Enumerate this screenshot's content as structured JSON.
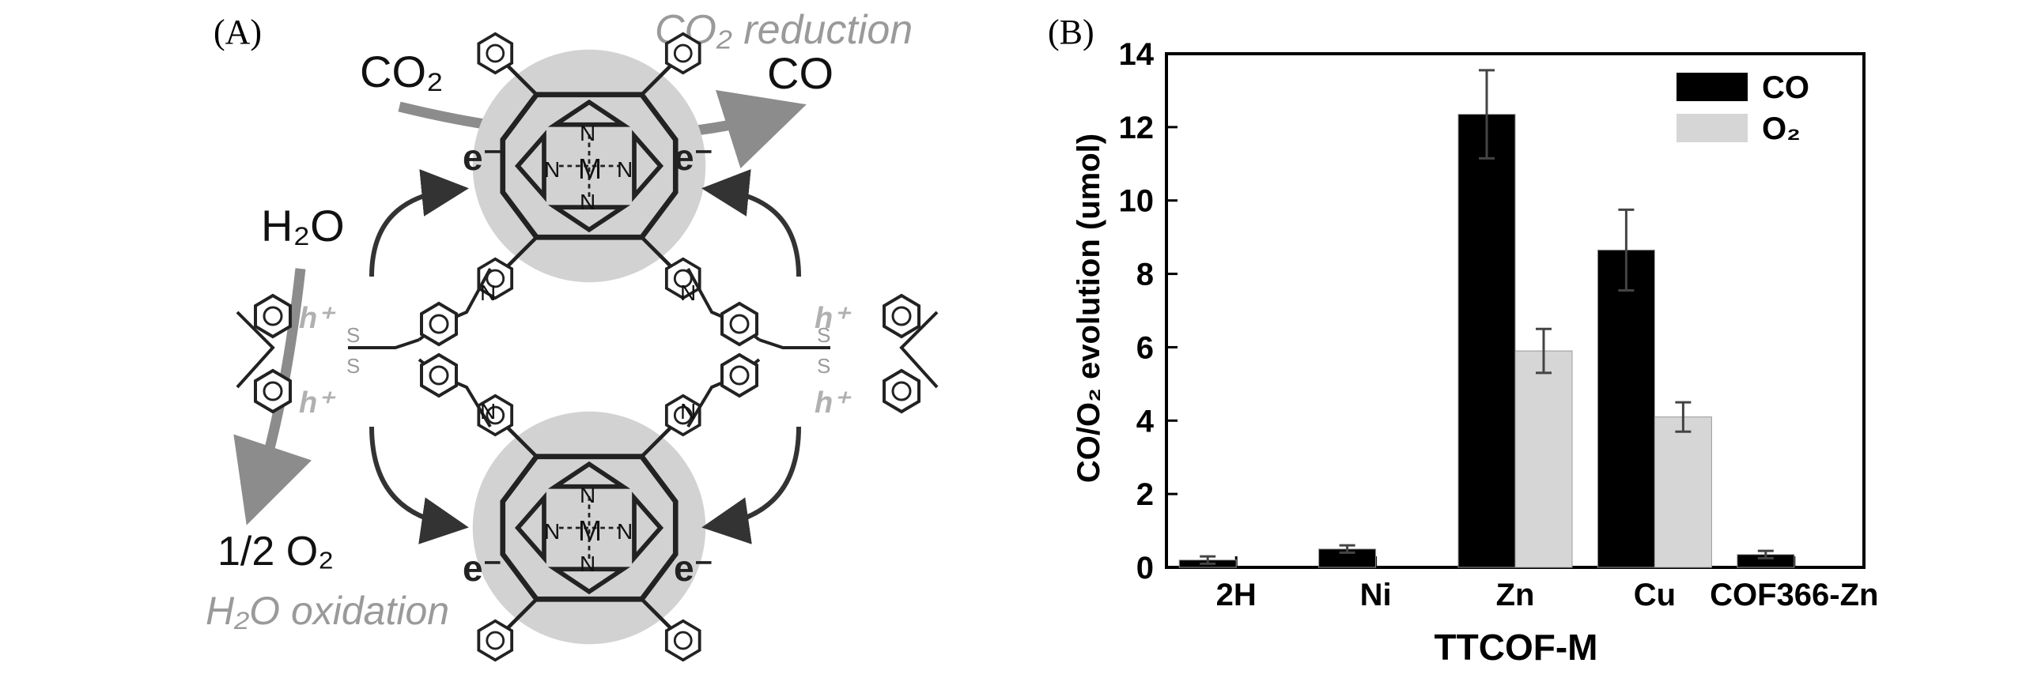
{
  "panel_a": {
    "label": "(A)",
    "reduction_label": "CO₂ reduction",
    "oxidation_label": "H₂O oxidation",
    "reactant_co2": "CO₂",
    "product_co": "CO",
    "reactant_h2o": "H₂O",
    "product_o2": "1/2 O₂",
    "electron": "e⁻",
    "hole": "h⁺",
    "metal": "M",
    "nitrogen": "N",
    "sulfur": "S"
  },
  "panel_b": {
    "label": "(B)"
  },
  "chart_data": {
    "type": "bar",
    "categories": [
      "2H",
      "Ni",
      "Zn",
      "Cu",
      "COF366-Zn"
    ],
    "series": [
      {
        "name": "CO",
        "color": "#000000",
        "values": [
          0.2,
          0.5,
          12.35,
          8.65,
          0.35
        ],
        "errors": [
          0.1,
          0.1,
          1.2,
          1.1,
          0.1
        ]
      },
      {
        "name": "O₂",
        "color": "#d6d6d6",
        "values": [
          null,
          null,
          5.9,
          4.1,
          null
        ],
        "errors": [
          null,
          null,
          0.6,
          0.4,
          null
        ]
      }
    ],
    "xlabel": "TTCOF-M",
    "ylabel": "CO/O₂ evolution (umol)",
    "ylim": [
      0,
      14
    ],
    "yticks": [
      0,
      2,
      4,
      6,
      8,
      10,
      12,
      14
    ],
    "legend_position": "top-right",
    "grid": false
  }
}
